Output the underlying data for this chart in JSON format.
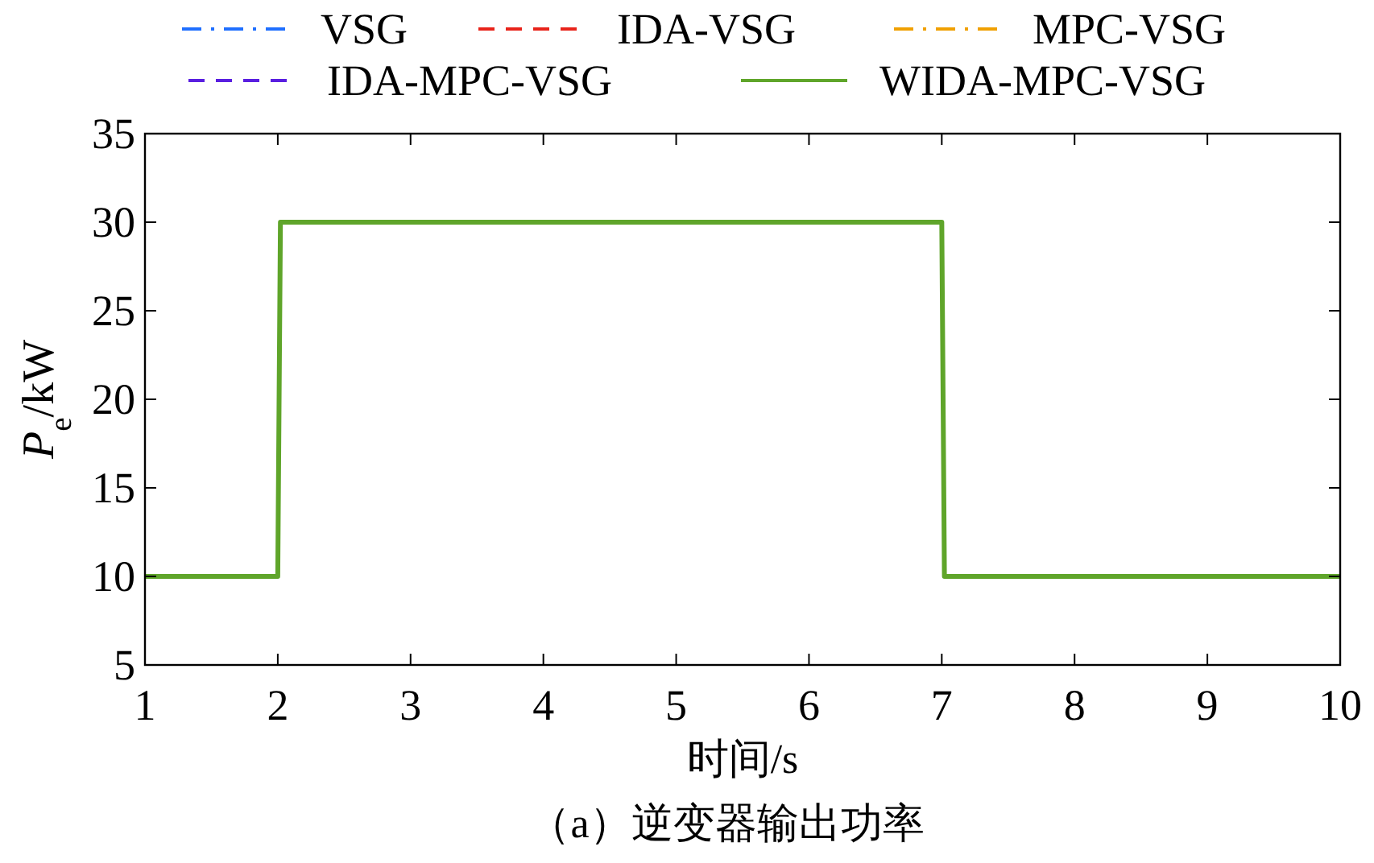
{
  "chart_data": {
    "type": "line",
    "xlabel": "时间/s",
    "ylabel": "P$_{e}$/kW",
    "annotations": [
      "（a）逆变器输出功率"
    ],
    "x": [
      1,
      2,
      2.02,
      7,
      7.02,
      10
    ],
    "xlim": [
      1,
      10
    ],
    "xticks": [
      1,
      2,
      3,
      4,
      5,
      6,
      7,
      8,
      9,
      10
    ],
    "ylim": [
      5,
      35
    ],
    "yticks": [
      5,
      10,
      15,
      20,
      25,
      30,
      35
    ],
    "grid": false,
    "legend": "top",
    "marker": "none",
    "series": [
      {
        "name": "VSG",
        "color": "#1f6fff",
        "line_style": "dashdot",
        "values": [
          null,
          null,
          null,
          null,
          null,
          null
        ]
      },
      {
        "name": "IDA-VSG",
        "color": "#e8231a",
        "line_style": "dashed",
        "values": [
          null,
          null,
          null,
          null,
          null,
          null
        ]
      },
      {
        "name": "MPC-VSG",
        "color": "#f0a000",
        "line_style": "dashdot",
        "values": [
          null,
          null,
          null,
          null,
          null,
          null
        ]
      },
      {
        "name": "IDA-MPC-VSG",
        "color": "#5a1fe0",
        "line_style": "dashed",
        "values": [
          null,
          null,
          null,
          null,
          null,
          null
        ]
      },
      {
        "name": "WIDA-MPC-VSG",
        "color": "#5fa52a",
        "line_style": "solid",
        "values": [
          10,
          10,
          30,
          30,
          10,
          10
        ]
      }
    ]
  }
}
